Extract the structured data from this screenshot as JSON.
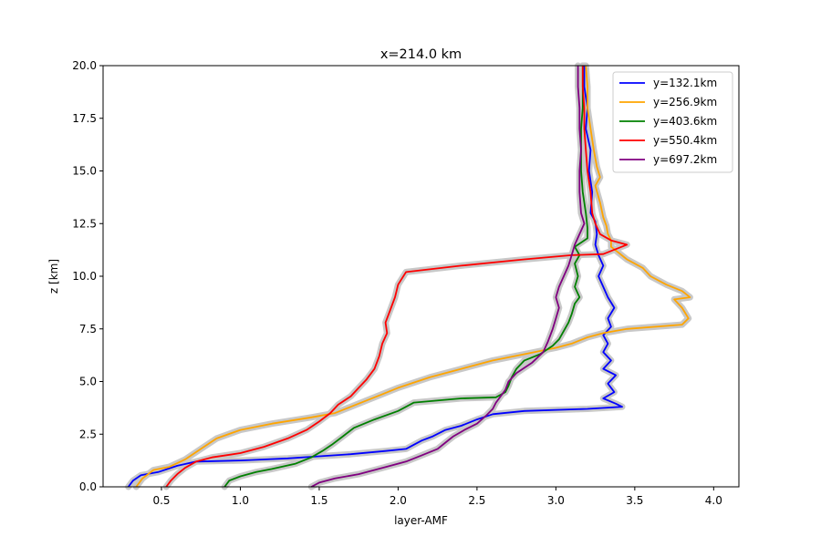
{
  "chart_data": {
    "type": "line",
    "title": "x=214.0 km",
    "xlabel": "layer-AMF",
    "ylabel": "z [km]",
    "xlim": [
      0.13,
      4.16
    ],
    "ylim": [
      0,
      20
    ],
    "xticks": [
      0.5,
      1.0,
      1.5,
      2.0,
      2.5,
      3.0,
      3.5,
      4.0
    ],
    "xtick_labels": [
      "0.5",
      "1.0",
      "1.5",
      "2.0",
      "2.5",
      "3.0",
      "3.5",
      "4.0"
    ],
    "yticks": [
      0,
      2.5,
      5,
      7.5,
      10,
      12.5,
      15,
      17.5,
      20
    ],
    "ytick_labels": [
      "0.0",
      "2.5",
      "5.0",
      "7.5",
      "10.0",
      "12.5",
      "15.0",
      "17.5",
      "20.0"
    ],
    "grid": false,
    "legend_position": "top-right",
    "uncertainty_band_color": "#c8c8c8",
    "series": [
      {
        "name": "y=132.1km",
        "color": "#0000ff",
        "points": [
          [
            0.29,
            0
          ],
          [
            0.32,
            0.3
          ],
          [
            0.37,
            0.55
          ],
          [
            0.48,
            0.7
          ],
          [
            0.6,
            1.0
          ],
          [
            0.72,
            1.2
          ],
          [
            1.0,
            1.25
          ],
          [
            1.3,
            1.35
          ],
          [
            1.5,
            1.45
          ],
          [
            1.7,
            1.55
          ],
          [
            1.92,
            1.7
          ],
          [
            2.05,
            1.8
          ],
          [
            2.1,
            2.0
          ],
          [
            2.15,
            2.2
          ],
          [
            2.22,
            2.4
          ],
          [
            2.3,
            2.7
          ],
          [
            2.4,
            2.9
          ],
          [
            2.5,
            3.2
          ],
          [
            2.6,
            3.45
          ],
          [
            2.8,
            3.6
          ],
          [
            3.2,
            3.7
          ],
          [
            3.42,
            3.8
          ],
          [
            3.38,
            3.95
          ],
          [
            3.3,
            4.2
          ],
          [
            3.37,
            4.5
          ],
          [
            3.33,
            4.9
          ],
          [
            3.38,
            5.3
          ],
          [
            3.3,
            5.6
          ],
          [
            3.35,
            6.0
          ],
          [
            3.3,
            6.4
          ],
          [
            3.33,
            6.8
          ],
          [
            3.3,
            7.2
          ],
          [
            3.35,
            7.6
          ],
          [
            3.33,
            8.0
          ],
          [
            3.37,
            8.5
          ],
          [
            3.33,
            9.0
          ],
          [
            3.3,
            9.5
          ],
          [
            3.27,
            10.0
          ],
          [
            3.3,
            10.5
          ],
          [
            3.27,
            11.0
          ],
          [
            3.25,
            11.5
          ],
          [
            3.26,
            12.0
          ],
          [
            3.25,
            12.6
          ],
          [
            3.22,
            13.0
          ],
          [
            3.23,
            14.0
          ],
          [
            3.21,
            15.0
          ],
          [
            3.22,
            16.0
          ],
          [
            3.19,
            17.0
          ],
          [
            3.2,
            18.0
          ],
          [
            3.18,
            19.0
          ],
          [
            3.18,
            20.0
          ]
        ]
      },
      {
        "name": "y=256.9km",
        "color": "#ffa500",
        "points": [
          [
            0.34,
            0
          ],
          [
            0.38,
            0.4
          ],
          [
            0.45,
            0.8
          ],
          [
            0.55,
            0.95
          ],
          [
            0.65,
            1.3
          ],
          [
            0.75,
            1.8
          ],
          [
            0.85,
            2.3
          ],
          [
            1.0,
            2.7
          ],
          [
            1.2,
            3.0
          ],
          [
            1.45,
            3.3
          ],
          [
            1.6,
            3.5
          ],
          [
            1.7,
            3.8
          ],
          [
            1.8,
            4.1
          ],
          [
            1.9,
            4.4
          ],
          [
            2.0,
            4.7
          ],
          [
            2.2,
            5.2
          ],
          [
            2.4,
            5.6
          ],
          [
            2.6,
            6.0
          ],
          [
            2.8,
            6.3
          ],
          [
            3.0,
            6.6
          ],
          [
            3.1,
            6.8
          ],
          [
            3.2,
            7.1
          ],
          [
            3.3,
            7.3
          ],
          [
            3.45,
            7.5
          ],
          [
            3.8,
            7.7
          ],
          [
            3.84,
            8.0
          ],
          [
            3.8,
            8.5
          ],
          [
            3.75,
            8.9
          ],
          [
            3.85,
            9.0
          ],
          [
            3.8,
            9.3
          ],
          [
            3.7,
            9.6
          ],
          [
            3.6,
            10.0
          ],
          [
            3.55,
            10.4
          ],
          [
            3.45,
            10.8
          ],
          [
            3.4,
            11.1
          ],
          [
            3.35,
            11.4
          ],
          [
            3.35,
            11.7
          ],
          [
            3.33,
            12.0
          ],
          [
            3.32,
            12.4
          ],
          [
            3.3,
            12.8
          ],
          [
            3.28,
            13.5
          ],
          [
            3.25,
            14.3
          ],
          [
            3.28,
            14.7
          ],
          [
            3.26,
            15.2
          ],
          [
            3.24,
            16.0
          ],
          [
            3.22,
            17.0
          ],
          [
            3.2,
            18.0
          ],
          [
            3.2,
            19.0
          ],
          [
            3.19,
            20.0
          ]
        ]
      },
      {
        "name": "y=403.6km",
        "color": "#008000",
        "points": [
          [
            0.9,
            0
          ],
          [
            0.93,
            0.3
          ],
          [
            1.0,
            0.5
          ],
          [
            1.1,
            0.7
          ],
          [
            1.2,
            0.85
          ],
          [
            1.35,
            1.1
          ],
          [
            1.45,
            1.4
          ],
          [
            1.52,
            1.7
          ],
          [
            1.58,
            2.0
          ],
          [
            1.65,
            2.4
          ],
          [
            1.72,
            2.8
          ],
          [
            1.85,
            3.2
          ],
          [
            2.0,
            3.6
          ],
          [
            2.1,
            4.0
          ],
          [
            2.4,
            4.2
          ],
          [
            2.62,
            4.25
          ],
          [
            2.68,
            4.5
          ],
          [
            2.7,
            4.8
          ],
          [
            2.72,
            5.2
          ],
          [
            2.75,
            5.6
          ],
          [
            2.8,
            6.0
          ],
          [
            2.9,
            6.3
          ],
          [
            2.98,
            6.7
          ],
          [
            3.02,
            7.0
          ],
          [
            3.05,
            7.4
          ],
          [
            3.08,
            7.8
          ],
          [
            3.1,
            8.2
          ],
          [
            3.12,
            8.7
          ],
          [
            3.15,
            9.0
          ],
          [
            3.12,
            9.5
          ],
          [
            3.14,
            10.0
          ],
          [
            3.12,
            10.6
          ],
          [
            3.15,
            11.0
          ],
          [
            3.12,
            11.4
          ],
          [
            3.2,
            11.8
          ],
          [
            3.2,
            12.3
          ],
          [
            3.19,
            13.0
          ],
          [
            3.17,
            14.0
          ],
          [
            3.16,
            15.0
          ],
          [
            3.16,
            16.0
          ],
          [
            3.16,
            17.0
          ],
          [
            3.17,
            18.0
          ],
          [
            3.17,
            19.0
          ],
          [
            3.17,
            20.0
          ]
        ]
      },
      {
        "name": "y=550.4km",
        "color": "#ff0000",
        "points": [
          [
            0.53,
            0
          ],
          [
            0.56,
            0.3
          ],
          [
            0.6,
            0.6
          ],
          [
            0.65,
            0.9
          ],
          [
            0.72,
            1.2
          ],
          [
            0.82,
            1.4
          ],
          [
            1.0,
            1.6
          ],
          [
            1.15,
            1.9
          ],
          [
            1.3,
            2.3
          ],
          [
            1.42,
            2.7
          ],
          [
            1.5,
            3.1
          ],
          [
            1.57,
            3.5
          ],
          [
            1.62,
            3.9
          ],
          [
            1.7,
            4.3
          ],
          [
            1.75,
            4.7
          ],
          [
            1.8,
            5.1
          ],
          [
            1.85,
            5.6
          ],
          [
            1.88,
            6.2
          ],
          [
            1.9,
            6.8
          ],
          [
            1.93,
            7.3
          ],
          [
            1.92,
            7.8
          ],
          [
            1.95,
            8.4
          ],
          [
            1.98,
            9.0
          ],
          [
            2.0,
            9.6
          ],
          [
            2.05,
            10.2
          ],
          [
            2.4,
            10.5
          ],
          [
            2.8,
            10.8
          ],
          [
            3.1,
            11.0
          ],
          [
            3.3,
            11.05
          ],
          [
            3.45,
            11.5
          ],
          [
            3.35,
            11.7
          ],
          [
            3.28,
            12.0
          ],
          [
            3.25,
            12.5
          ],
          [
            3.23,
            13.0
          ],
          [
            3.22,
            14.0
          ],
          [
            3.2,
            15.0
          ],
          [
            3.19,
            16.0
          ],
          [
            3.18,
            17.0
          ],
          [
            3.18,
            18.0
          ],
          [
            3.17,
            19.0
          ],
          [
            3.17,
            20.0
          ]
        ]
      },
      {
        "name": "y=697.2km",
        "color": "#800080",
        "points": [
          [
            1.45,
            0
          ],
          [
            1.5,
            0.2
          ],
          [
            1.6,
            0.4
          ],
          [
            1.75,
            0.6
          ],
          [
            1.9,
            0.9
          ],
          [
            2.05,
            1.2
          ],
          [
            2.15,
            1.5
          ],
          [
            2.25,
            1.8
          ],
          [
            2.3,
            2.1
          ],
          [
            2.35,
            2.4
          ],
          [
            2.42,
            2.7
          ],
          [
            2.5,
            3.0
          ],
          [
            2.56,
            3.4
          ],
          [
            2.6,
            3.7
          ],
          [
            2.62,
            4.0
          ],
          [
            2.65,
            4.3
          ],
          [
            2.68,
            4.6
          ],
          [
            2.7,
            5.0
          ],
          [
            2.75,
            5.4
          ],
          [
            2.85,
            5.9
          ],
          [
            2.92,
            6.4
          ],
          [
            2.95,
            6.9
          ],
          [
            2.98,
            7.5
          ],
          [
            3.0,
            8.0
          ],
          [
            3.02,
            8.5
          ],
          [
            3.0,
            9.0
          ],
          [
            3.02,
            9.5
          ],
          [
            3.05,
            10.0
          ],
          [
            3.08,
            10.5
          ],
          [
            3.1,
            11.0
          ],
          [
            3.12,
            11.5
          ],
          [
            3.15,
            12.0
          ],
          [
            3.18,
            12.5
          ],
          [
            3.16,
            13.0
          ],
          [
            3.15,
            14.0
          ],
          [
            3.15,
            15.0
          ],
          [
            3.16,
            16.0
          ],
          [
            3.15,
            17.0
          ],
          [
            3.15,
            18.0
          ],
          [
            3.14,
            19.0
          ],
          [
            3.14,
            20.0
          ]
        ]
      }
    ]
  }
}
